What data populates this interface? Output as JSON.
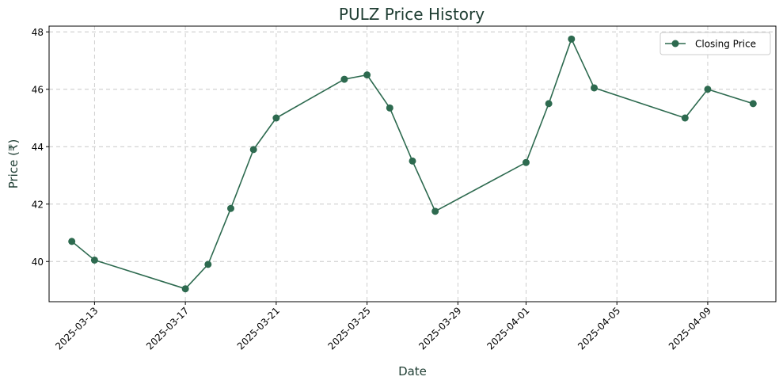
{
  "colors": {
    "series": "#2d6a4f",
    "title": "#1e3d32"
  },
  "chart_data": {
    "type": "line",
    "title": "PULZ Price History",
    "xlabel": "Date",
    "ylabel": "Price (₹)",
    "x_type": "date",
    "xlim": [
      "2025-03-11",
      "2025-04-12"
    ],
    "ylim": [
      38.6,
      48.2
    ],
    "xticks": [
      "2025-03-13",
      "2025-03-17",
      "2025-03-21",
      "2025-03-25",
      "2025-03-29",
      "2025-04-01",
      "2025-04-05",
      "2025-04-09"
    ],
    "yticks": [
      40,
      42,
      44,
      46,
      48
    ],
    "grid": true,
    "legend_position": "top-right",
    "series": [
      {
        "name": "Closing Price",
        "marker": "circle",
        "x": [
          "2025-03-12",
          "2025-03-13",
          "2025-03-17",
          "2025-03-18",
          "2025-03-19",
          "2025-03-20",
          "2025-03-21",
          "2025-03-24",
          "2025-03-25",
          "2025-03-26",
          "2025-03-27",
          "2025-03-28",
          "2025-04-01",
          "2025-04-02",
          "2025-04-03",
          "2025-04-04",
          "2025-04-08",
          "2025-04-09",
          "2025-04-11"
        ],
        "y": [
          40.7,
          40.05,
          39.05,
          39.9,
          41.85,
          43.9,
          45.0,
          46.35,
          46.5,
          45.35,
          43.5,
          41.75,
          43.45,
          45.5,
          47.75,
          46.05,
          45.0,
          46.0,
          45.5
        ]
      }
    ]
  }
}
